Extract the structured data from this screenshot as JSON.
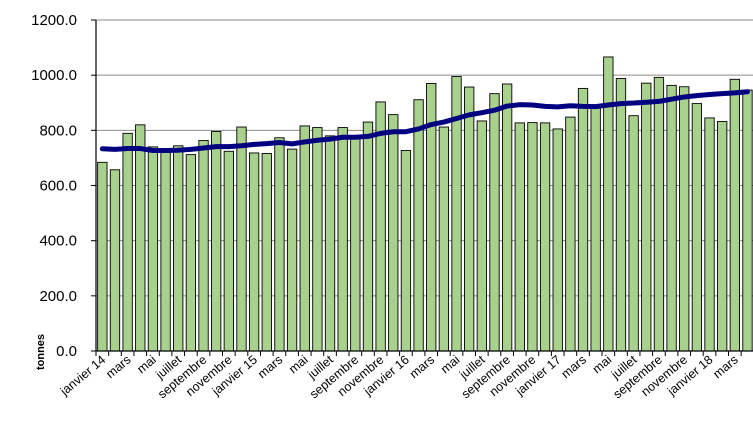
{
  "chart_data": {
    "type": "bar",
    "title": "",
    "ylabel": "tonnes",
    "xlabel": "",
    "ylim": [
      0,
      1200
    ],
    "yticks": [
      "0.0",
      "200.0",
      "400.0",
      "600.0",
      "800.0",
      "1000.0",
      "1200.0"
    ],
    "grid": true,
    "legend": "none",
    "x_tick_labels": [
      "janvier 14",
      "mars",
      "mai",
      "juillet",
      "septembre",
      "novembre",
      "janvier 15",
      "mars",
      "mai",
      "juillet",
      "septembre",
      "novembre",
      "janvier 16",
      "mars",
      "mai",
      "juillet",
      "septembre",
      "novembre",
      "janvier 17",
      "mars",
      "mai",
      "juillet",
      "septembre",
      "novembre",
      "janvier 18",
      "mars"
    ],
    "series": [
      {
        "type": "bar",
        "color": "#a9d18e",
        "edge_color": "#000000",
        "values": [
          684,
          657,
          789,
          820,
          740,
          730,
          744,
          712,
          763,
          796,
          724,
          812,
          718,
          716,
          773,
          732,
          816,
          810,
          780,
          810,
          779,
          830,
          903,
          857,
          727,
          911,
          970,
          812,
          995,
          957,
          834,
          933,
          968,
          827,
          828,
          827,
          805,
          848,
          952,
          883,
          1066,
          988,
          853,
          971,
          992,
          963,
          958,
          897,
          845,
          832,
          985,
          946
        ]
      },
      {
        "type": "line",
        "color": "#000080",
        "values": [
          733,
          731,
          734,
          734,
          727,
          727,
          728,
          731,
          736,
          741,
          741,
          744,
          749,
          752,
          756,
          751,
          758,
          764,
          768,
          775,
          775,
          778,
          789,
          795,
          795,
          805,
          821,
          830,
          843,
          856,
          864,
          873,
          888,
          893,
          892,
          887,
          885,
          889,
          887,
          886,
          892,
          897,
          899,
          902,
          905,
          913,
          921,
          926,
          930,
          933,
          936,
          940
        ]
      }
    ]
  }
}
